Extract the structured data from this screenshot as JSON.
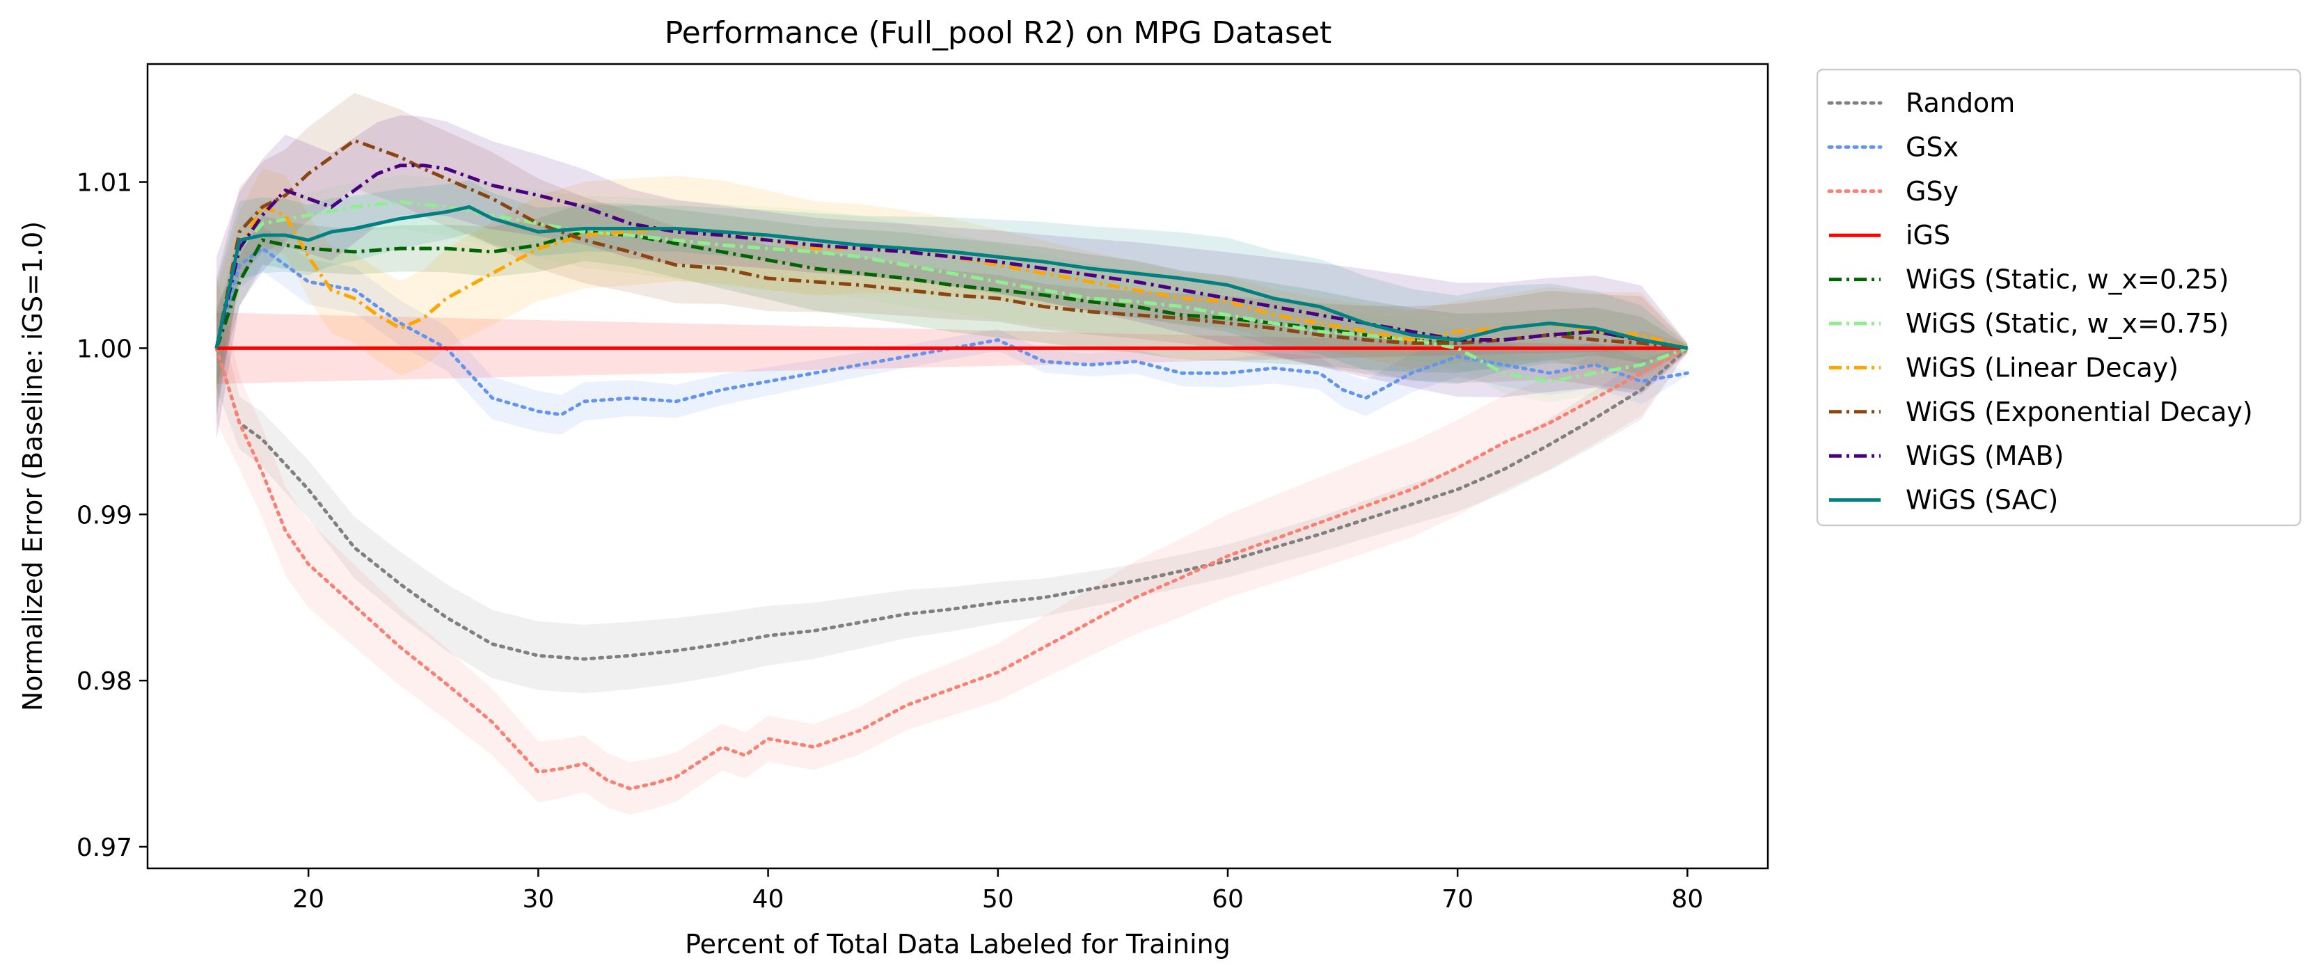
{
  "chart_data": {
    "type": "line",
    "title": "Performance (Full_pool R2) on MPG Dataset",
    "xlabel": "Percent of Total Data Labeled for Training",
    "ylabel": "Normalized Error (Baseline: iGS=1.0)",
    "xlim": [
      13,
      83.5
    ],
    "ylim": [
      0.9687,
      1.0171
    ],
    "xticks": [
      20,
      30,
      40,
      50,
      60,
      70,
      80
    ],
    "xtick_labels": [
      "20",
      "30",
      "40",
      "50",
      "60",
      "70",
      "80"
    ],
    "yticks": [
      0.97,
      0.98,
      0.99,
      1.0,
      1.01
    ],
    "ytick_labels": [
      "0.97",
      "0.98",
      "0.99",
      "1.00",
      "1.01"
    ],
    "grid": false,
    "legend_position": "outside right, top",
    "series": [
      {
        "name": "Random",
        "color": "#808080",
        "dash": "dotted",
        "x": [
          16,
          17,
          18,
          20,
          22,
          24,
          26,
          28,
          30,
          32,
          34,
          36,
          38,
          40,
          42,
          44,
          46,
          48,
          50,
          52,
          54,
          56,
          58,
          60,
          62,
          64,
          66,
          68,
          70,
          72,
          74,
          76,
          78,
          80
        ],
        "y": [
          1.0,
          0.9955,
          0.9945,
          0.9915,
          0.988,
          0.9858,
          0.9838,
          0.9822,
          0.9815,
          0.9813,
          0.9815,
          0.9818,
          0.9822,
          0.9827,
          0.983,
          0.9835,
          0.984,
          0.9843,
          0.9847,
          0.985,
          0.9855,
          0.986,
          0.9866,
          0.9872,
          0.988,
          0.9888,
          0.9897,
          0.9906,
          0.9915,
          0.9927,
          0.9942,
          0.9958,
          0.9975,
          1.0
        ],
        "band": 0.0018
      },
      {
        "name": "GSx",
        "color": "#6495ED",
        "dash": "dotted",
        "x": [
          16,
          17,
          18,
          20,
          22,
          24,
          26,
          28,
          30,
          31,
          32,
          34,
          36,
          38,
          40,
          42,
          44,
          46,
          48,
          50,
          52,
          54,
          56,
          58,
          60,
          62,
          64,
          65,
          66,
          68,
          70,
          72,
          74,
          76,
          78,
          80
        ],
        "y": [
          1.0,
          1.005,
          1.006,
          1.004,
          1.0035,
          1.0015,
          1.0,
          0.997,
          0.9962,
          0.996,
          0.9968,
          0.997,
          0.9968,
          0.9975,
          0.998,
          0.9985,
          0.999,
          0.9995,
          1.0,
          1.0005,
          0.9992,
          0.999,
          0.9992,
          0.9985,
          0.9985,
          0.9988,
          0.9985,
          0.9975,
          0.997,
          0.9985,
          0.9995,
          0.999,
          0.9985,
          0.999,
          0.998,
          0.9985
        ],
        "band": 0.0012
      },
      {
        "name": "GSy",
        "color": "#FA8072",
        "dash": "dotted",
        "x": [
          16,
          17,
          18,
          19,
          20,
          22,
          24,
          26,
          28,
          29,
          30,
          31,
          32,
          33,
          34,
          35,
          36,
          38,
          39,
          40,
          42,
          44,
          46,
          48,
          50,
          52,
          54,
          56,
          58,
          60,
          62,
          64,
          66,
          68,
          70,
          72,
          74,
          76,
          78,
          80
        ],
        "y": [
          1.0,
          0.9955,
          0.9925,
          0.989,
          0.987,
          0.9845,
          0.982,
          0.9798,
          0.9775,
          0.976,
          0.9745,
          0.9747,
          0.975,
          0.974,
          0.9735,
          0.9738,
          0.9742,
          0.976,
          0.9755,
          0.9765,
          0.976,
          0.977,
          0.9785,
          0.9795,
          0.9805,
          0.982,
          0.9835,
          0.985,
          0.9862,
          0.9875,
          0.9885,
          0.9895,
          0.9905,
          0.9915,
          0.9928,
          0.9943,
          0.9955,
          0.997,
          0.9985,
          1.0
        ],
        "band": 0.0025
      },
      {
        "name": "iGS",
        "color": "#FF0000",
        "dash": "solid",
        "x": [
          16,
          80
        ],
        "y": [
          1.0,
          1.0
        ],
        "band": 0.0015
      },
      {
        "name": "WiGS (Static, w_x=0.25)",
        "color": "#006400",
        "dash": "dashdot",
        "x": [
          16,
          17,
          18,
          19,
          20,
          22,
          24,
          26,
          28,
          30,
          32,
          34,
          36,
          38,
          40,
          42,
          44,
          46,
          48,
          50,
          52,
          54,
          56,
          58,
          60,
          62,
          64,
          66,
          68,
          70,
          72,
          74,
          76,
          78,
          80
        ],
        "y": [
          1.0,
          1.004,
          1.0065,
          1.0062,
          1.006,
          1.0058,
          1.006,
          1.006,
          1.0058,
          1.0062,
          1.007,
          1.0068,
          1.0063,
          1.0058,
          1.0053,
          1.0048,
          1.0045,
          1.0042,
          1.0038,
          1.0035,
          1.0032,
          1.0028,
          1.0025,
          1.002,
          1.0018,
          1.0015,
          1.0012,
          1.0008,
          1.0005,
          1.0003,
          1.0005,
          1.0008,
          1.001,
          1.0005,
          1.0
        ],
        "band": 0.0025
      },
      {
        "name": "WiGS (Static, w_x=0.75)",
        "color": "#90EE90",
        "dash": "dashdot",
        "x": [
          16,
          17,
          18,
          20,
          22,
          24,
          26,
          28,
          30,
          32,
          34,
          36,
          38,
          40,
          42,
          44,
          46,
          48,
          50,
          52,
          54,
          56,
          58,
          60,
          62,
          64,
          66,
          68,
          70,
          72,
          74,
          76,
          78,
          80
        ],
        "y": [
          1.0,
          1.006,
          1.0075,
          1.008,
          1.0085,
          1.0088,
          1.0085,
          1.008,
          1.0075,
          1.007,
          1.0068,
          1.0065,
          1.0062,
          1.006,
          1.0058,
          1.0055,
          1.005,
          1.0045,
          1.004,
          1.0035,
          1.003,
          1.0028,
          1.0025,
          1.002,
          1.0015,
          1.001,
          1.0008,
          1.0005,
          1.0,
          0.9985,
          0.998,
          0.9985,
          0.999,
          1.0
        ],
        "band": 0.0022
      },
      {
        "name": "WiGS (Linear Decay)",
        "color": "#FFA500",
        "dash": "dashdot",
        "x": [
          16,
          17,
          18,
          19,
          20,
          21,
          22,
          23,
          24,
          25,
          26,
          28,
          30,
          32,
          34,
          36,
          38,
          40,
          42,
          44,
          46,
          48,
          50,
          52,
          54,
          56,
          58,
          60,
          62,
          64,
          66,
          68,
          70,
          72,
          74,
          76,
          78,
          80
        ],
        "y": [
          1.0,
          1.006,
          1.0085,
          1.008,
          1.0055,
          1.0035,
          1.003,
          1.002,
          1.0012,
          1.0018,
          1.003,
          1.0045,
          1.006,
          1.0068,
          1.007,
          1.0072,
          1.007,
          1.0065,
          1.006,
          1.006,
          1.0058,
          1.0055,
          1.005,
          1.0045,
          1.004,
          1.0035,
          1.003,
          1.0028,
          1.002,
          1.0015,
          1.001,
          1.0005,
          1.001,
          1.0012,
          1.0015,
          1.001,
          1.0008,
          1.0
        ],
        "band": 0.0028
      },
      {
        "name": "WiGS (Exponential Decay)",
        "color": "#8B4513",
        "dash": "dashdot",
        "x": [
          16,
          17,
          18,
          19,
          20,
          21,
          22,
          23,
          24,
          25,
          26,
          28,
          30,
          32,
          34,
          36,
          38,
          40,
          42,
          44,
          46,
          48,
          50,
          52,
          54,
          56,
          58,
          60,
          62,
          64,
          66,
          68,
          70,
          72,
          74,
          76,
          78,
          80
        ],
        "y": [
          1.0,
          1.007,
          1.0085,
          1.0092,
          1.0105,
          1.0115,
          1.0125,
          1.012,
          1.0115,
          1.0108,
          1.0102,
          1.009,
          1.0075,
          1.0065,
          1.0058,
          1.005,
          1.0048,
          1.0042,
          1.004,
          1.0038,
          1.0035,
          1.0032,
          1.003,
          1.0025,
          1.0022,
          1.002,
          1.0018,
          1.0015,
          1.0012,
          1.0008,
          1.0005,
          1.0003,
          1.0003,
          1.0005,
          1.0008,
          1.0005,
          1.0003,
          1.0
        ],
        "band": 0.0025
      },
      {
        "name": "WiGS (MAB)",
        "color": "#4B0082",
        "dash": "dashdot",
        "x": [
          16,
          17,
          18,
          19,
          20,
          21,
          22,
          23,
          24,
          25,
          26,
          28,
          30,
          32,
          34,
          36,
          38,
          40,
          42,
          44,
          46,
          48,
          50,
          52,
          54,
          56,
          58,
          60,
          62,
          64,
          66,
          68,
          70,
          72,
          74,
          76,
          78,
          80
        ],
        "y": [
          1.0,
          1.006,
          1.008,
          1.0095,
          1.009,
          1.0085,
          1.0095,
          1.0105,
          1.011,
          1.011,
          1.0108,
          1.0098,
          1.0092,
          1.0085,
          1.0075,
          1.007,
          1.0068,
          1.0065,
          1.0062,
          1.006,
          1.0058,
          1.0055,
          1.0052,
          1.0048,
          1.0044,
          1.004,
          1.0035,
          1.003,
          1.0025,
          1.002,
          1.0015,
          1.001,
          1.0005,
          1.0005,
          1.0008,
          1.001,
          1.0005,
          1.0
        ],
        "band": 0.003
      },
      {
        "name": "WiGS (SAC)",
        "color": "#008080",
        "dash": "solid",
        "x": [
          16,
          17,
          18,
          19,
          20,
          21,
          22,
          24,
          26,
          27,
          28,
          30,
          32,
          34,
          36,
          38,
          40,
          42,
          44,
          46,
          48,
          50,
          52,
          54,
          56,
          58,
          60,
          62,
          64,
          66,
          68,
          70,
          72,
          74,
          76,
          78,
          80
        ],
        "y": [
          1.0,
          1.0065,
          1.0068,
          1.0068,
          1.0065,
          1.007,
          1.0072,
          1.0078,
          1.0082,
          1.0085,
          1.0078,
          1.007,
          1.0072,
          1.0072,
          1.0072,
          1.007,
          1.0068,
          1.0065,
          1.0062,
          1.006,
          1.0058,
          1.0055,
          1.0052,
          1.0048,
          1.0045,
          1.0042,
          1.0038,
          1.003,
          1.0025,
          1.0015,
          1.0008,
          1.0005,
          1.0012,
          1.0015,
          1.0012,
          1.0005,
          1.0
        ],
        "band": 0.0025
      }
    ]
  }
}
